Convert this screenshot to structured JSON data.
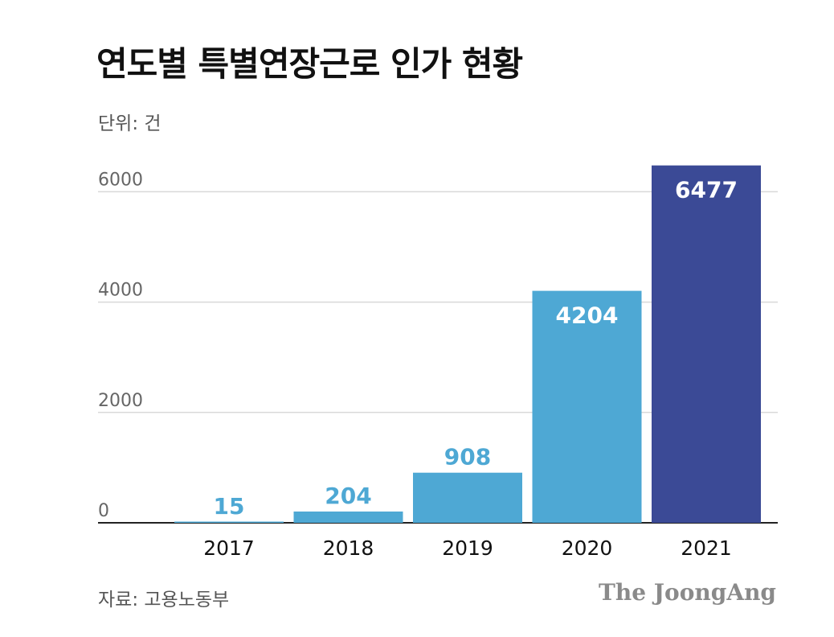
{
  "chart_data": {
    "type": "bar",
    "title": "연도별 특별연장근로 인가 현황",
    "unit_label": "단위: 건",
    "categories": [
      "2017",
      "2018",
      "2019",
      "2020",
      "2021"
    ],
    "values": [
      15,
      204,
      908,
      4204,
      6477
    ],
    "data_labels": [
      "15",
      "204",
      "908",
      "4204",
      "6477"
    ],
    "yticks": [
      0,
      2000,
      4000,
      6000
    ],
    "ytick_labels": [
      "0",
      "2000",
      "4000",
      "6000"
    ],
    "ylim": [
      0,
      6500
    ],
    "xlabel": "",
    "ylabel": "",
    "grid": true,
    "legend": "none",
    "colors": {
      "bar": "#4ea8d4",
      "highlight_bar": "#3b4a96",
      "outside_label": "#4ea8d4",
      "inside_label": "#ffffff",
      "gridline": "#d9d9d9",
      "axis": "#222222"
    },
    "highlight_index": 4,
    "source": "자료: 고용노동부",
    "brand": "The JoongAng"
  }
}
